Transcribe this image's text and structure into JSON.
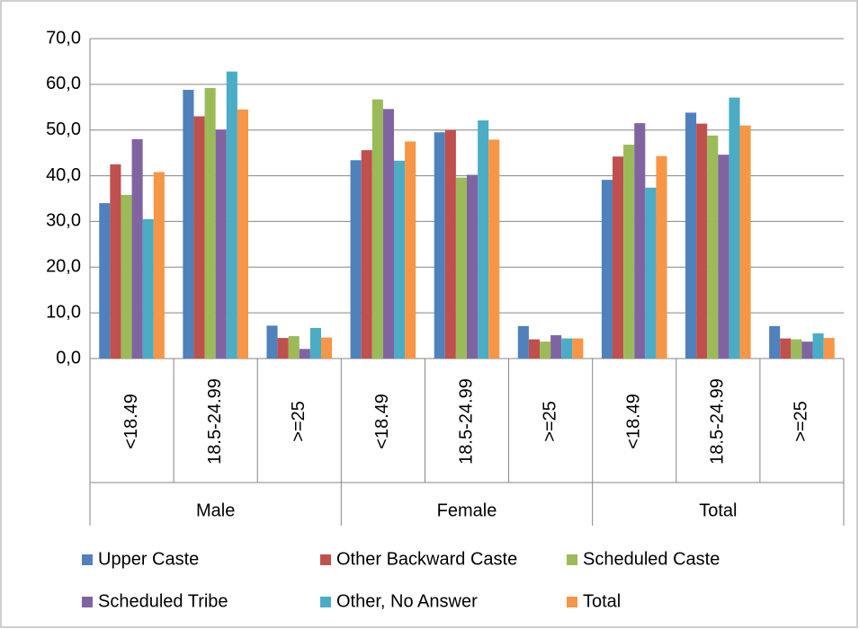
{
  "chart_data": {
    "type": "bar",
    "categories": [
      "<18.49",
      "18.5-24.99",
      ">=25",
      "<18.49",
      "18.5-24.99",
      ">=25",
      "<18.49",
      "18.5-24.99",
      ">=25"
    ],
    "category_groups": [
      "Male",
      "Female",
      "Total"
    ],
    "series": [
      {
        "name": "Upper Caste",
        "color": "#4f81bd",
        "values": [
          34.0,
          58.8,
          7.2,
          43.4,
          49.5,
          7.1,
          39.1,
          53.8,
          7.1
        ]
      },
      {
        "name": "Other Backward Caste",
        "color": "#c0504d",
        "values": [
          42.5,
          53.0,
          4.5,
          45.6,
          50.0,
          4.2,
          44.2,
          51.4,
          4.4
        ]
      },
      {
        "name": "Scheduled Caste",
        "color": "#9bbb59",
        "values": [
          35.8,
          59.2,
          4.9,
          56.7,
          39.6,
          3.7,
          46.8,
          48.8,
          4.2
        ]
      },
      {
        "name": "Scheduled Tribe",
        "color": "#8064a2",
        "values": [
          48.0,
          50.1,
          2.1,
          54.6,
          40.2,
          5.1,
          51.5,
          44.6,
          3.7
        ]
      },
      {
        "name": "Other, No Answer",
        "color": "#4bacc6",
        "values": [
          30.5,
          62.8,
          6.7,
          43.3,
          52.1,
          4.4,
          37.4,
          57.1,
          5.5
        ]
      },
      {
        "name": "Total",
        "color": "#f79646",
        "values": [
          40.8,
          54.5,
          4.6,
          47.5,
          47.9,
          4.4,
          44.3,
          51.0,
          4.5
        ]
      }
    ],
    "ylim": [
      0,
      70
    ],
    "yticks": [
      {
        "value": 0,
        "label": "0,0"
      },
      {
        "value": 10,
        "label": "10,0"
      },
      {
        "value": 20,
        "label": "20,0"
      },
      {
        "value": 30,
        "label": "30,0"
      },
      {
        "value": 40,
        "label": "40,0"
      },
      {
        "value": 50,
        "label": "50,0"
      },
      {
        "value": 60,
        "label": "60,0"
      },
      {
        "value": 70,
        "label": "70,0"
      }
    ],
    "grid": true
  }
}
